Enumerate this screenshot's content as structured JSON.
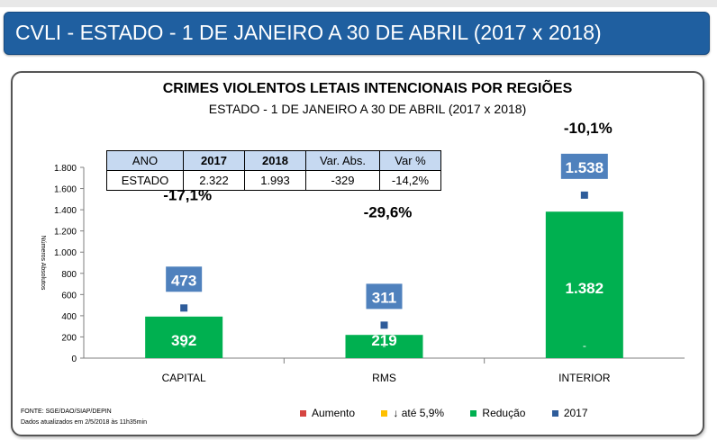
{
  "header": {
    "title": "CVLI - ESTADO - 1 DE JANEIRO A 30 DE ABRIL (2017 x 2018)"
  },
  "summary_table": {
    "headers": [
      "ANO",
      "2017",
      "2018",
      "Var. Abs.",
      "Var %"
    ],
    "row": [
      "ESTADO",
      "2.322",
      "1.993",
      "-329",
      "-14,2%"
    ]
  },
  "footnotes": {
    "source": "FONTE: SGE/DAO/SIAP/DEPIN",
    "updated": "Dados atualizados em 2/5/2018 às 11h35min"
  },
  "legend": [
    {
      "label": "Aumento",
      "color": "#d64541"
    },
    {
      "label": "↓ até 5,9%",
      "color": "#ffc000"
    },
    {
      "label": "Redução",
      "color": "#00b050"
    },
    {
      "label": "2017",
      "color": "#2e5c9a"
    }
  ],
  "chart_data": {
    "type": "bar",
    "title": "CRIMES VIOLENTOS LETAIS INTENCIONAIS POR REGIÕES",
    "subtitle": "ESTADO - 1 DE JANEIRO A 30 DE ABRIL (2017 x 2018)",
    "ylabel": "Números Absolutos",
    "ylim": [
      0,
      1800
    ],
    "yticks": [
      0,
      200,
      400,
      600,
      800,
      1000,
      1200,
      1400,
      1600,
      1800
    ],
    "ytick_labels": [
      "0",
      "200",
      "400",
      "600",
      "800",
      "1.000",
      "1.200",
      "1.400",
      "1.600",
      "1.800"
    ],
    "categories": [
      "CAPITAL",
      "RMS",
      "INTERIOR"
    ],
    "series": [
      {
        "name": "2017",
        "values": [
          473,
          311,
          1538
        ],
        "labels": [
          "473",
          "311",
          "1.538"
        ]
      },
      {
        "values": [
          392,
          219,
          1382
        ],
        "labels": [
          "392",
          "219",
          "1.382"
        ]
      }
    ],
    "variation_labels": [
      "-17,1%",
      "-29,6%",
      "-10,1%"
    ],
    "zero_markers": [
      "-",
      "-",
      "-"
    ],
    "colors": {
      "bar": "#00b050",
      "marker_2017": "#2e5c9a",
      "label_box": "#4f81bd",
      "axis": "#7f7f7f",
      "gridline": "#d9d9d9"
    },
    "grid": false
  }
}
